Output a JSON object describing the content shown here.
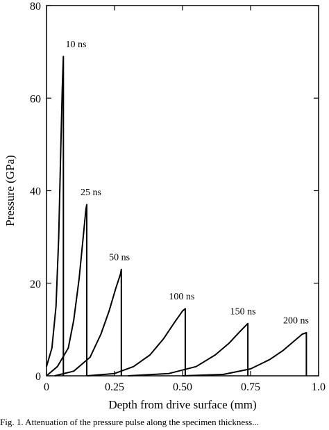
{
  "chart_data": {
    "type": "line",
    "title": "",
    "xlabel": "Depth from drive surface (mm)",
    "ylabel": "Pressure (GPa)",
    "xlim": [
      0,
      1.0
    ],
    "ylim": [
      0,
      80
    ],
    "x_ticks": [
      {
        "value": 0,
        "label": "0"
      },
      {
        "value": 0.25,
        "label": "0.25"
      },
      {
        "value": 0.5,
        "label": "0.50"
      },
      {
        "value": 0.75,
        "label": "0.75"
      },
      {
        "value": 1.0,
        "label": "1.0"
      }
    ],
    "y_ticks": [
      {
        "value": 0,
        "label": "0"
      },
      {
        "value": 20,
        "label": "20"
      },
      {
        "value": 40,
        "label": "40"
      },
      {
        "value": 60,
        "label": "60"
      },
      {
        "value": 80,
        "label": "80"
      }
    ],
    "grid": false,
    "series": [
      {
        "name": "10 ns",
        "x": [
          0,
          0.02,
          0.035,
          0.045,
          0.052,
          0.058,
          0.062,
          0.062
        ],
        "y": [
          2,
          6,
          15,
          30,
          48,
          62,
          69,
          0
        ]
      },
      {
        "name": "25 ns",
        "x": [
          0,
          0.04,
          0.08,
          0.1,
          0.12,
          0.135,
          0.145,
          0.148,
          0.148
        ],
        "y": [
          0,
          2,
          6,
          12,
          21,
          30,
          36,
          37,
          0
        ]
      },
      {
        "name": "50 ns",
        "x": [
          0.03,
          0.1,
          0.16,
          0.2,
          0.23,
          0.255,
          0.272,
          0.275,
          0.275
        ],
        "y": [
          0,
          1,
          4,
          9,
          14,
          19,
          22,
          23,
          0
        ]
      },
      {
        "name": "100 ns",
        "x": [
          0.15,
          0.25,
          0.32,
          0.38,
          0.43,
          0.47,
          0.5,
          0.51,
          0.51
        ],
        "y": [
          0,
          0.5,
          2,
          4.5,
          8,
          11.5,
          14,
          14.5,
          0
        ]
      },
      {
        "name": "150 ns",
        "x": [
          0.3,
          0.45,
          0.55,
          0.62,
          0.67,
          0.71,
          0.735,
          0.74,
          0.74
        ],
        "y": [
          0,
          0.5,
          2,
          4.5,
          7,
          9.5,
          11,
          11.3,
          0
        ]
      },
      {
        "name": "200 ns",
        "x": [
          0.5,
          0.65,
          0.75,
          0.82,
          0.87,
          0.91,
          0.94,
          0.955,
          0.955
        ],
        "y": [
          0,
          0.3,
          1.5,
          3.5,
          5.5,
          7.5,
          9,
          9.3,
          0
        ]
      }
    ],
    "annotations": [
      {
        "text": "10 ns",
        "x": 0.07,
        "y": 71
      },
      {
        "text": "25 ns",
        "x": 0.125,
        "y": 39
      },
      {
        "text": "50 ns",
        "x": 0.23,
        "y": 25
      },
      {
        "text": "100 ns",
        "x": 0.45,
        "y": 16.5
      },
      {
        "text": "150 ns",
        "x": 0.675,
        "y": 13.3
      },
      {
        "text": "200 ns",
        "x": 0.87,
        "y": 11.3
      }
    ]
  },
  "caption": "Fig. 1. Attenuation of the pressure pulse along the specimen thickness..."
}
